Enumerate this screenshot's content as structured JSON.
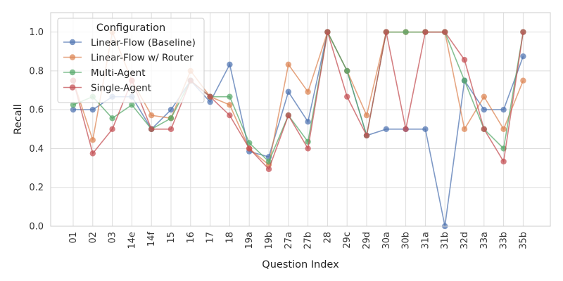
{
  "chart_data": {
    "type": "line",
    "xlabel": "Question Index",
    "ylabel": "Recall",
    "ylim": [
      0,
      1.1
    ],
    "yticks": [
      0.0,
      0.2,
      0.4,
      0.6,
      0.8,
      1.0
    ],
    "ytick_labels": [
      "0.0",
      "0.2",
      "0.4",
      "0.6",
      "0.8",
      "1.0"
    ],
    "grid": true,
    "legend_title": "Configuration",
    "legend_position": "top-left",
    "categories": [
      "01",
      "02",
      "03",
      "14e",
      "14f",
      "15",
      "16",
      "17",
      "18",
      "19a",
      "19b",
      "27a",
      "27b",
      "28",
      "29c",
      "29d",
      "30a",
      "30b",
      "31a",
      "31b",
      "32d",
      "33a",
      "33b",
      "35b"
    ],
    "series": [
      {
        "name": "Linear-Flow (Baseline)",
        "color": "#4c72b0",
        "values": [
          0.6,
          0.6,
          0.667,
          0.667,
          0.5,
          0.6,
          0.75,
          0.64,
          0.833,
          0.385,
          0.357,
          0.692,
          0.538,
          1.0,
          0.8,
          0.467,
          0.5,
          0.5,
          0.5,
          0.0,
          0.75,
          0.6,
          0.6,
          0.875
        ]
      },
      {
        "name": "Linear-Flow w/ Router",
        "color": "#dd8452",
        "values": [
          0.75,
          0.444,
          1.0,
          0.75,
          0.571,
          0.556,
          0.8,
          0.667,
          0.625,
          0.4,
          0.316,
          0.833,
          0.692,
          1.0,
          0.8,
          0.571,
          1.0,
          1.0,
          1.0,
          1.0,
          0.5,
          0.667,
          0.5,
          0.75
        ]
      },
      {
        "name": "Multi-Agent",
        "color": "#55a868",
        "values": [
          0.625,
          0.667,
          0.556,
          0.625,
          0.5,
          0.556,
          0.75,
          0.667,
          0.667,
          0.429,
          0.333,
          0.571,
          0.435,
          1.0,
          0.8,
          0.467,
          1.0,
          1.0,
          1.0,
          1.0,
          0.75,
          0.5,
          0.4,
          1.0
        ]
      },
      {
        "name": "Single-Agent",
        "color": "#c44e52",
        "values": [
          0.75,
          0.375,
          0.5,
          0.75,
          0.5,
          0.5,
          0.75,
          0.667,
          0.571,
          0.4,
          0.294,
          0.571,
          0.4,
          1.0,
          0.667,
          0.467,
          1.0,
          0.5,
          1.0,
          1.0,
          0.857,
          0.5,
          0.333,
          1.0
        ]
      }
    ]
  }
}
